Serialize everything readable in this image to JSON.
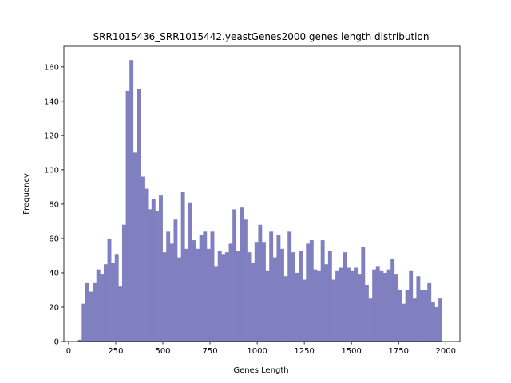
{
  "chart_data": {
    "type": "bar",
    "title": "SRR1015436_SRR1015442.yeastGenes2000 genes length distribution",
    "xlabel": "Genes Length",
    "ylabel": "Frequency",
    "xlim": [
      -25,
      2075
    ],
    "ylim": [
      0,
      172
    ],
    "xticks": [
      0,
      250,
      500,
      750,
      1000,
      1250,
      1500,
      1750,
      2000
    ],
    "yticks": [
      0,
      20,
      40,
      60,
      80,
      100,
      120,
      140,
      160
    ],
    "grid": false,
    "bar_color": "#8080c0",
    "bin_start": 50,
    "bin_width": 19.5,
    "values": [
      1,
      22,
      34,
      29,
      34,
      42,
      39,
      45,
      60,
      46,
      51,
      32,
      68,
      146,
      164,
      110,
      147,
      96,
      89,
      77,
      83,
      76,
      85,
      52,
      64,
      57,
      71,
      49,
      87,
      54,
      81,
      59,
      54,
      62,
      64,
      54,
      64,
      44,
      53,
      51,
      52,
      57,
      77,
      53,
      78,
      71,
      52,
      46,
      58,
      68,
      58,
      41,
      64,
      49,
      62,
      54,
      38,
      64,
      52,
      40,
      53,
      36,
      57,
      59,
      42,
      41,
      59,
      45,
      53,
      36,
      41,
      43,
      52,
      43,
      41,
      43,
      39,
      55,
      33,
      25,
      42,
      44,
      41,
      40,
      42,
      48,
      39,
      30,
      22,
      30,
      41,
      25,
      38,
      30,
      30,
      34,
      23,
      20,
      25
    ]
  }
}
